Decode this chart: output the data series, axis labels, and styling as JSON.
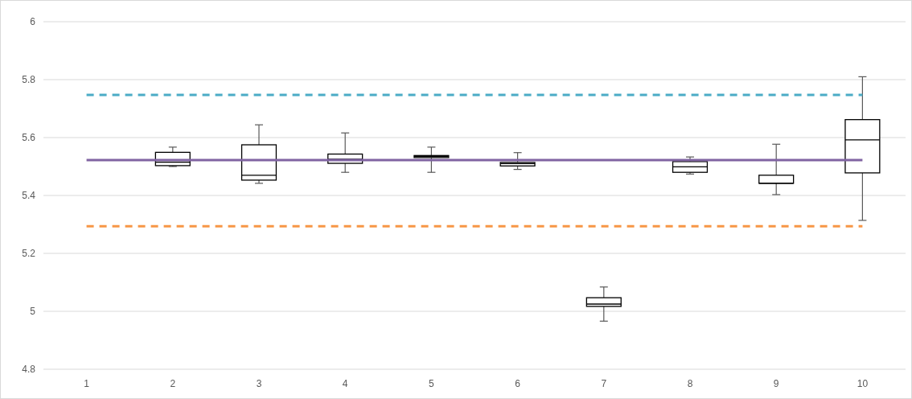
{
  "chart_data": {
    "type": "box",
    "categories": [
      "1",
      "2",
      "3",
      "4",
      "5",
      "6",
      "7",
      "8",
      "9",
      "10"
    ],
    "boxes": [
      null,
      {
        "low": 5.5,
        "q1": 5.503,
        "median": 5.515,
        "q3": 5.549,
        "high": 5.567
      },
      {
        "low": 5.442,
        "q1": 5.453,
        "median": 5.47,
        "q3": 5.575,
        "high": 5.644
      },
      {
        "low": 5.48,
        "q1": 5.511,
        "median": 5.525,
        "q3": 5.543,
        "high": 5.616
      },
      {
        "low": 5.48,
        "q1": 5.531,
        "median": 5.535,
        "q3": 5.538,
        "high": 5.567
      },
      {
        "low": 5.49,
        "q1": 5.502,
        "median": 5.51,
        "q3": 5.514,
        "high": 5.548
      },
      {
        "low": 4.966,
        "q1": 5.017,
        "median": 5.025,
        "q3": 5.047,
        "high": 5.084
      },
      {
        "low": 5.474,
        "q1": 5.48,
        "median": 5.499,
        "q3": 5.517,
        "high": 5.533
      },
      {
        "low": 5.403,
        "q1": 5.442,
        "median": 5.442,
        "q3": 5.47,
        "high": 5.577
      },
      {
        "low": 5.314,
        "q1": 5.478,
        "median": 5.592,
        "q3": 5.662,
        "high": 5.81
      }
    ],
    "series": [
      {
        "type": "line",
        "color": "#4bacc6",
        "line_style": "dashed",
        "values": [
          5.747,
          5.747,
          5.747,
          5.747,
          5.747,
          5.747,
          5.747,
          5.747,
          5.747,
          5.747
        ]
      },
      {
        "type": "line",
        "color": "#8064a2",
        "line_style": "solid",
        "values": [
          5.522,
          5.522,
          5.522,
          5.522,
          5.522,
          5.522,
          5.522,
          5.522,
          5.522,
          5.522
        ]
      },
      {
        "type": "line",
        "color": "#f79646",
        "line_style": "dashed",
        "values": [
          5.294,
          5.294,
          5.294,
          5.294,
          5.294,
          5.294,
          5.294,
          5.294,
          5.294,
          5.294
        ]
      }
    ],
    "ylim": [
      4.8,
      6
    ],
    "yticks": [
      4.8,
      5,
      5.2,
      5.4,
      5.6,
      5.8,
      6
    ],
    "grid": "y"
  }
}
